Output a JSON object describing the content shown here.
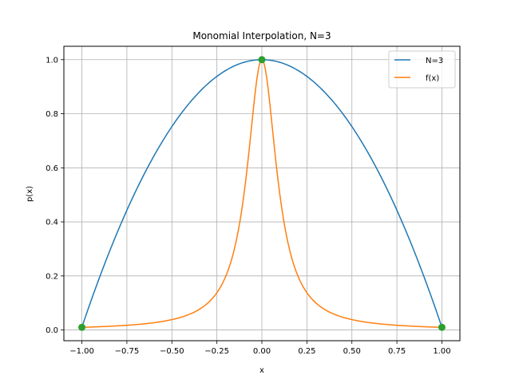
{
  "chart_data": {
    "type": "line",
    "title": "Monomial Interpolation, N=3",
    "xlabel": "x",
    "ylabel": "p(x)",
    "xlim": [
      -1.1,
      1.1
    ],
    "ylim": [
      -0.0396,
      1.0495
    ],
    "grid": true,
    "legend_position": "top-right",
    "x_ticks": [
      -1.0,
      -0.75,
      -0.5,
      -0.25,
      0.0,
      0.25,
      0.5,
      0.75,
      1.0
    ],
    "x_tick_labels": [
      "−1.00",
      "−0.75",
      "−0.50",
      "−0.25",
      "0.00",
      "0.25",
      "0.50",
      "0.75",
      "1.00"
    ],
    "y_ticks": [
      0.0,
      0.2,
      0.4,
      0.6,
      0.8,
      1.0
    ],
    "y_tick_labels": [
      "0.0",
      "0.2",
      "0.4",
      "0.6",
      "0.8",
      "1.0"
    ],
    "series": [
      {
        "name": "N=3",
        "color": "#1f77b4",
        "x": [
          -1.0,
          -0.9,
          -0.8,
          -0.7,
          -0.6,
          -0.5,
          -0.4,
          -0.3,
          -0.2,
          -0.1,
          0.0,
          0.1,
          0.2,
          0.3,
          0.4,
          0.5,
          0.6,
          0.7,
          0.8,
          0.9,
          1.0
        ],
        "y": [
          0.0099,
          0.198,
          0.366,
          0.515,
          0.644,
          0.752,
          0.842,
          0.911,
          0.96,
          0.99,
          1.0,
          0.99,
          0.96,
          0.911,
          0.842,
          0.752,
          0.644,
          0.515,
          0.366,
          0.198,
          0.0099
        ]
      },
      {
        "name": "f(x)",
        "color": "#ff7f0e",
        "x": [
          -1.0,
          -0.9,
          -0.8,
          -0.7,
          -0.6,
          -0.5,
          -0.45,
          -0.4,
          -0.35,
          -0.3,
          -0.25,
          -0.2,
          -0.175,
          -0.15,
          -0.125,
          -0.1,
          -0.075,
          -0.05,
          -0.025,
          0.0,
          0.025,
          0.05,
          0.075,
          0.1,
          0.125,
          0.15,
          0.175,
          0.2,
          0.25,
          0.3,
          0.35,
          0.4,
          0.45,
          0.5,
          0.6,
          0.7,
          0.8,
          0.9,
          1.0
        ],
        "y": [
          0.0099,
          0.0122,
          0.0154,
          0.02,
          0.027,
          0.0385,
          0.047,
          0.0588,
          0.0755,
          0.1,
          0.1379,
          0.2,
          0.2462,
          0.3077,
          0.3902,
          0.5,
          0.64,
          0.8,
          0.9412,
          1.0,
          0.9412,
          0.8,
          0.64,
          0.5,
          0.3902,
          0.3077,
          0.2462,
          0.2,
          0.1379,
          0.1,
          0.0755,
          0.0588,
          0.047,
          0.0385,
          0.027,
          0.02,
          0.0154,
          0.0122,
          0.0099
        ]
      }
    ],
    "nodes": {
      "color": "#2ca02c",
      "x": [
        -1.0,
        0.0,
        1.0
      ],
      "y": [
        0.0099,
        1.0,
        0.0099
      ]
    }
  }
}
